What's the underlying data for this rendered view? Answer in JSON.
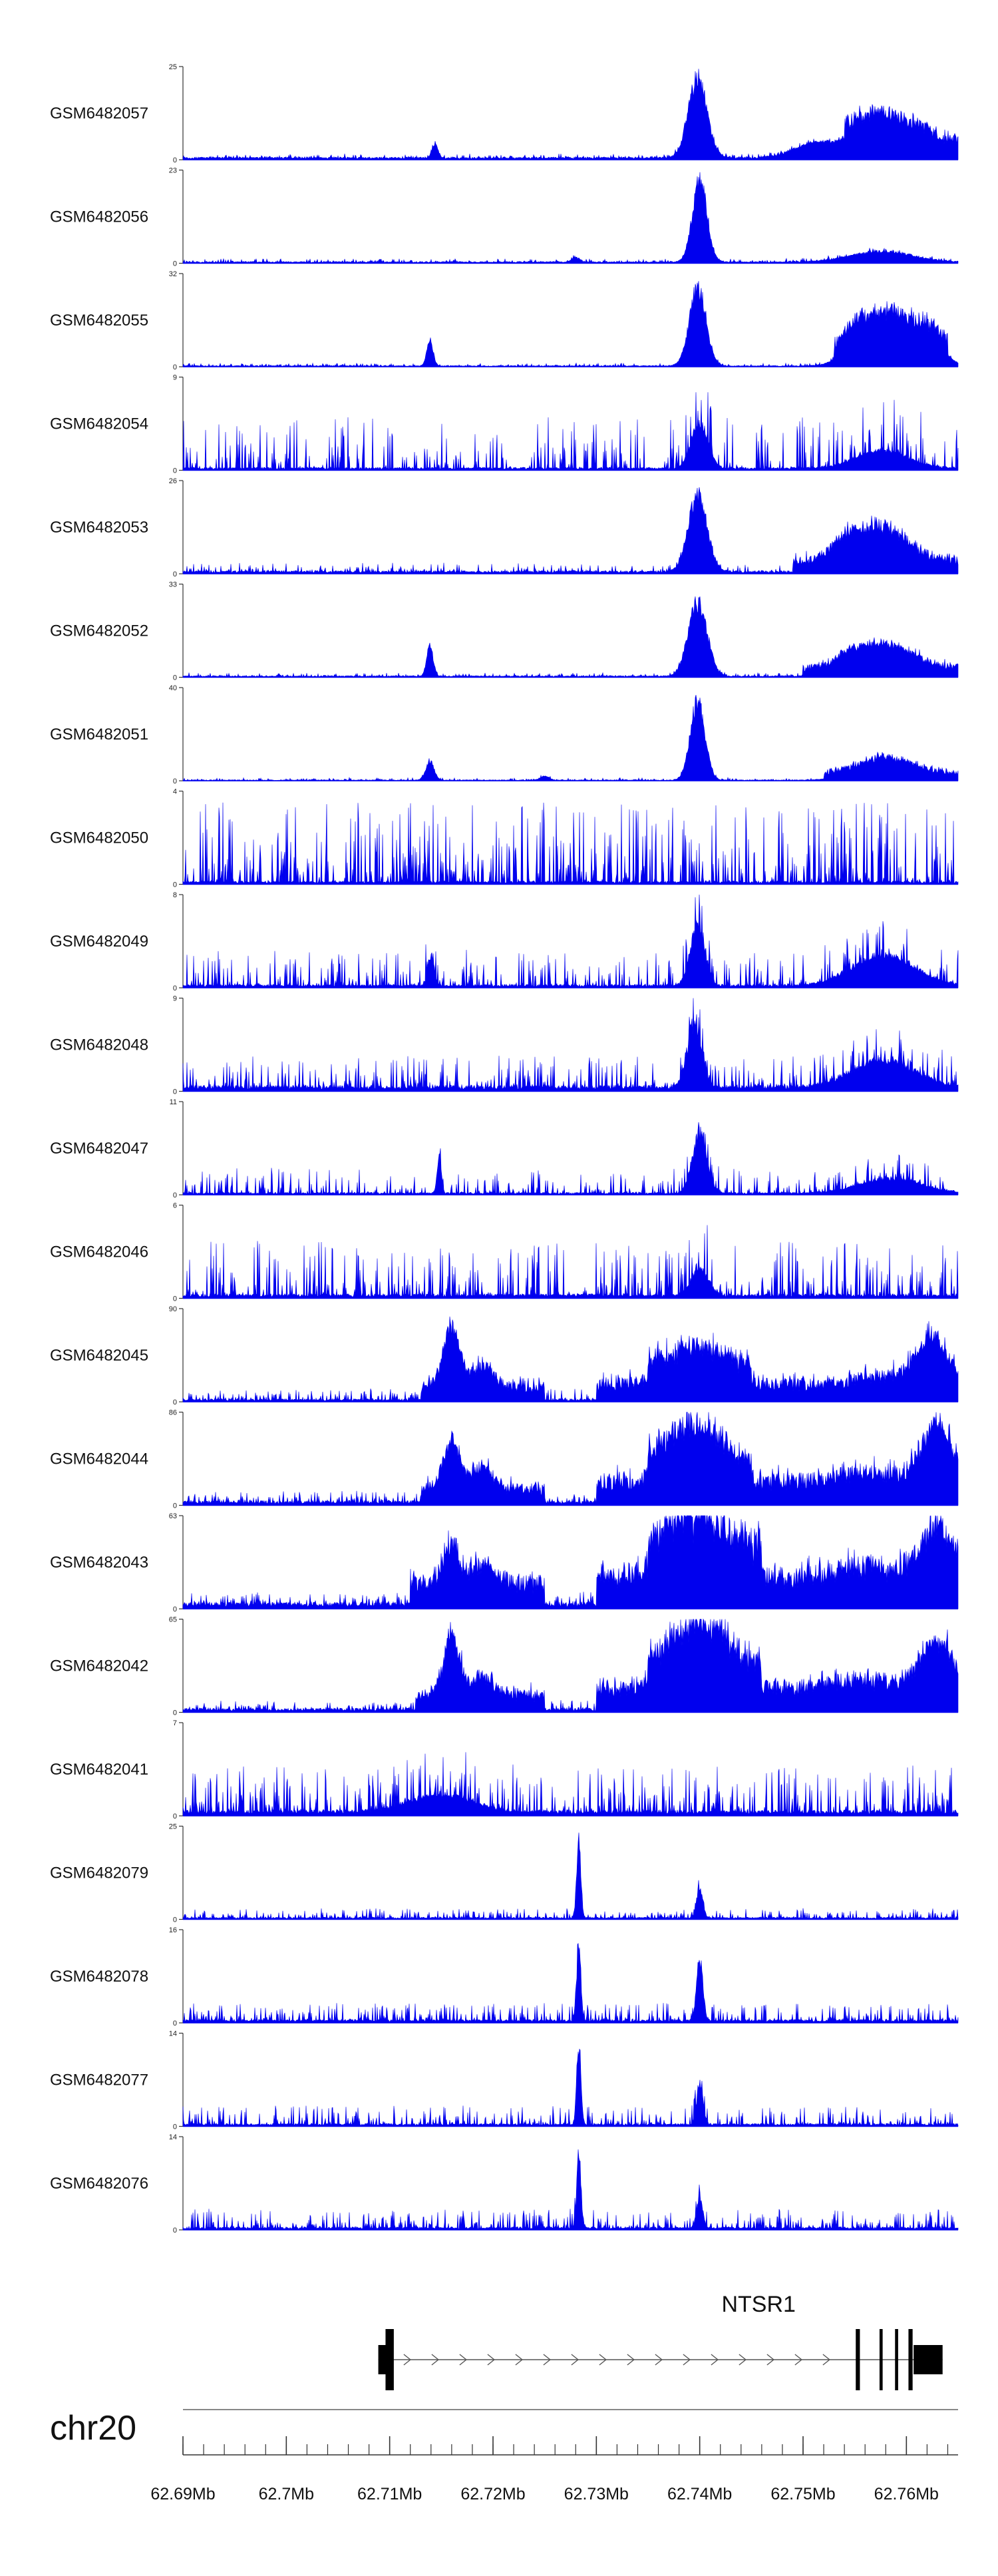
{
  "chart_data": {
    "type": "area",
    "chromosome": "chr20",
    "xlim": [
      62.69,
      62.765
    ],
    "x_unit": "Mb",
    "tracks": [
      {
        "name": "GSM6482057",
        "ymax": "25",
        "ymin": "0",
        "max": 25,
        "base": 0.5,
        "noise": 0.9,
        "noise_p": 0.4,
        "peaks": [
          [
            62.7398,
            0.0009,
            24
          ],
          [
            62.7144,
            0.0003,
            4
          ],
          [
            62.7575,
            0.0036,
            9
          ],
          [
            62.7505,
            0.0018,
            3
          ]
        ],
        "plateaus": [
          [
            62.754,
            62.765,
            4
          ]
        ]
      },
      {
        "name": "GSM6482056",
        "ymax": "23",
        "ymin": "0",
        "max": 23,
        "base": 0.3,
        "noise": 0.8,
        "noise_p": 0.3,
        "peaks": [
          [
            62.74,
            0.0007,
            23
          ],
          [
            62.7575,
            0.003,
            3
          ],
          [
            62.728,
            0.0004,
            1.2
          ]
        ],
        "plateaus": []
      },
      {
        "name": "GSM6482055",
        "ymax": "32",
        "ymin": "0",
        "max": 32,
        "base": 0.3,
        "noise": 0.9,
        "noise_p": 0.3,
        "peaks": [
          [
            62.7398,
            0.0008,
            30
          ],
          [
            62.7139,
            0.0003,
            10
          ],
          [
            62.7585,
            0.0025,
            16
          ],
          [
            62.755,
            0.0012,
            6
          ],
          [
            62.7625,
            0.0012,
            6
          ]
        ],
        "plateaus": [
          [
            62.753,
            62.764,
            5
          ]
        ]
      },
      {
        "name": "GSM6482054",
        "ymax": "9",
        "ymin": "0",
        "max": 9,
        "base": 0.2,
        "noise": 5,
        "noise_p": 0.28,
        "peaks": [
          [
            62.74,
            0.0008,
            5
          ],
          [
            62.7577,
            0.0025,
            2
          ]
        ],
        "plateaus": []
      },
      {
        "name": "GSM6482053",
        "ymax": "26",
        "ymin": "0",
        "max": 26,
        "base": 0.6,
        "noise": 2.2,
        "noise_p": 0.25,
        "peaks": [
          [
            62.7398,
            0.0009,
            24
          ],
          [
            62.7575,
            0.0025,
            11
          ],
          [
            62.754,
            0.0012,
            5
          ]
        ],
        "plateaus": [
          [
            62.749,
            62.765,
            3
          ]
        ]
      },
      {
        "name": "GSM6482052",
        "ymax": "33",
        "ymin": "0",
        "max": 33,
        "base": 0.4,
        "noise": 1.2,
        "noise_p": 0.25,
        "peaks": [
          [
            62.7398,
            0.0009,
            30
          ],
          [
            62.7139,
            0.0003,
            12
          ],
          [
            62.758,
            0.0026,
            10
          ],
          [
            62.7545,
            0.0012,
            4
          ]
        ],
        "plateaus": [
          [
            62.75,
            62.765,
            3
          ]
        ]
      },
      {
        "name": "GSM6482051",
        "ymax": "40",
        "ymin": "0",
        "max": 40,
        "base": 0.3,
        "noise": 1.0,
        "noise_p": 0.25,
        "peaks": [
          [
            62.7398,
            0.0007,
            38
          ],
          [
            62.7139,
            0.0004,
            9
          ],
          [
            62.758,
            0.0026,
            8
          ],
          [
            62.725,
            0.0004,
            2
          ]
        ],
        "plateaus": [
          [
            62.752,
            62.765,
            3
          ]
        ]
      },
      {
        "name": "GSM6482050",
        "ymax": "4",
        "ymin": "0",
        "max": 4,
        "base": 0.1,
        "noise": 3.4,
        "noise_p": 0.45,
        "peaks": [],
        "plateaus": []
      },
      {
        "name": "GSM6482049",
        "ymax": "8",
        "ymin": "0",
        "max": 8,
        "base": 0.2,
        "noise": 3,
        "noise_p": 0.35,
        "peaks": [
          [
            62.7398,
            0.0007,
            6
          ],
          [
            62.7578,
            0.003,
            3
          ],
          [
            62.714,
            0.0003,
            3
          ]
        ],
        "plateaus": []
      },
      {
        "name": "GSM6482048",
        "ymax": "9",
        "ymin": "0",
        "max": 9,
        "base": 0.4,
        "noise": 3,
        "noise_p": 0.35,
        "peaks": [
          [
            62.7395,
            0.0007,
            7
          ],
          [
            62.7578,
            0.003,
            3
          ]
        ],
        "plateaus": []
      },
      {
        "name": "GSM6482047",
        "ymax": "11",
        "ymin": "0",
        "max": 11,
        "base": 0.2,
        "noise": 3,
        "noise_p": 0.3,
        "peaks": [
          [
            62.74,
            0.0007,
            8
          ],
          [
            62.7148,
            0.0002,
            5
          ],
          [
            62.7585,
            0.003,
            2
          ]
        ],
        "plateaus": []
      },
      {
        "name": "GSM6482046",
        "ymax": "6",
        "ymin": "0",
        "max": 6,
        "base": 0.2,
        "noise": 3.5,
        "noise_p": 0.35,
        "peaks": [
          [
            62.74,
            0.0008,
            2
          ]
        ],
        "plateaus": []
      },
      {
        "name": "GSM6482045",
        "ymax": "90",
        "ymin": "0",
        "max": 90,
        "base": 2,
        "noise": 10,
        "noise_p": 0.35,
        "peaks": [
          [
            62.716,
            0.0008,
            68
          ],
          [
            62.719,
            0.001,
            25
          ],
          [
            62.7395,
            0.003,
            22
          ],
          [
            62.7625,
            0.0015,
            50
          ],
          [
            62.758,
            0.003,
            10
          ]
        ],
        "plateaus": [
          [
            62.713,
            62.725,
            12
          ],
          [
            62.73,
            62.765,
            14
          ],
          [
            62.735,
            62.745,
            18
          ]
        ]
      },
      {
        "name": "GSM6482044",
        "ymax": "86",
        "ymin": "0",
        "max": 86,
        "base": 3,
        "noise": 10,
        "noise_p": 0.35,
        "peaks": [
          [
            62.716,
            0.0008,
            50
          ],
          [
            62.719,
            0.001,
            22
          ],
          [
            62.7395,
            0.0025,
            40
          ],
          [
            62.763,
            0.0015,
            60
          ],
          [
            62.756,
            0.003,
            10
          ]
        ],
        "plateaus": [
          [
            62.713,
            62.725,
            12
          ],
          [
            62.73,
            62.765,
            18
          ],
          [
            62.735,
            62.745,
            20
          ]
        ]
      },
      {
        "name": "GSM6482043",
        "ymax": "63",
        "ymin": "0",
        "max": 63,
        "base": 3,
        "noise": 8,
        "noise_p": 0.4,
        "peaks": [
          [
            62.716,
            0.0008,
            30
          ],
          [
            62.719,
            0.001,
            15
          ],
          [
            62.7395,
            0.0028,
            25
          ],
          [
            62.763,
            0.0016,
            40
          ],
          [
            62.756,
            0.003,
            8
          ]
        ],
        "plateaus": [
          [
            62.712,
            62.725,
            14
          ],
          [
            62.73,
            62.765,
            18
          ],
          [
            62.735,
            62.746,
            20
          ]
        ]
      },
      {
        "name": "GSM6482042",
        "ymax": "65",
        "ymin": "0",
        "max": 65,
        "base": 2,
        "noise": 6,
        "noise_p": 0.35,
        "peaks": [
          [
            62.716,
            0.0008,
            45
          ],
          [
            62.719,
            0.001,
            15
          ],
          [
            62.7398,
            0.0028,
            35
          ],
          [
            62.763,
            0.0016,
            40
          ],
          [
            62.7555,
            0.003,
            8
          ]
        ],
        "plateaus": [
          [
            62.7125,
            62.725,
            10
          ],
          [
            62.73,
            62.765,
            14
          ],
          [
            62.735,
            62.746,
            16
          ]
        ]
      },
      {
        "name": "GSM6482041",
        "ymax": "7",
        "ymin": "0",
        "max": 7,
        "base": 0.3,
        "noise": 3.5,
        "noise_p": 0.4,
        "peaks": [
          [
            62.715,
            0.003,
            1.5
          ]
        ],
        "plateaus": []
      },
      {
        "name": "GSM6482079",
        "ymax": "25",
        "ymin": "0",
        "max": 25,
        "base": 0.4,
        "noise": 2.5,
        "noise_p": 0.35,
        "peaks": [
          [
            62.7283,
            0.0002,
            23
          ],
          [
            62.74,
            0.0003,
            9
          ]
        ],
        "plateaus": []
      },
      {
        "name": "GSM6482078",
        "ymax": "16",
        "ymin": "0",
        "max": 16,
        "base": 0.4,
        "noise": 3,
        "noise_p": 0.35,
        "peaks": [
          [
            62.7283,
            0.0002,
            15
          ],
          [
            62.74,
            0.0003,
            12
          ]
        ],
        "plateaus": []
      },
      {
        "name": "GSM6482077",
        "ymax": "14",
        "ymin": "0",
        "max": 14,
        "base": 0.3,
        "noise": 2.8,
        "noise_p": 0.35,
        "peaks": [
          [
            62.7283,
            0.0002,
            13
          ],
          [
            62.74,
            0.0003,
            7
          ]
        ],
        "plateaus": []
      },
      {
        "name": "GSM6482076",
        "ymax": "14",
        "ymin": "0",
        "max": 14,
        "base": 0.3,
        "noise": 2.8,
        "noise_p": 0.4,
        "peaks": [
          [
            62.7283,
            0.0002,
            13
          ],
          [
            62.74,
            0.0003,
            5
          ]
        ],
        "plateaus": []
      }
    ],
    "gene": {
      "name": "NTSR1",
      "strand": "+",
      "start": 62.7089,
      "end": 62.7635,
      "exons": [
        {
          "start": 62.7089,
          "end": 62.7101,
          "utr": true
        },
        {
          "start": 62.7096,
          "end": 62.7104,
          "utr": false
        },
        {
          "start": 62.7551,
          "end": 62.7555,
          "utr": false
        },
        {
          "start": 62.7574,
          "end": 62.7577,
          "utr": false
        },
        {
          "start": 62.7589,
          "end": 62.7592,
          "utr": false
        },
        {
          "start": 62.7602,
          "end": 62.7606,
          "utr": false
        },
        {
          "start": 62.7607,
          "end": 62.7635,
          "utr": true
        }
      ]
    },
    "x_ticks": [
      62.69,
      62.7,
      62.71,
      62.72,
      62.73,
      62.74,
      62.75,
      62.76
    ],
    "x_tick_labels": [
      "62.69Mb",
      "62.7Mb",
      "62.71Mb",
      "62.72Mb",
      "62.73Mb",
      "62.74Mb",
      "62.75Mb",
      "62.76Mb"
    ],
    "minor_tick_step": 0.002,
    "colors": {
      "signal": "#0000ee",
      "axis": "#333333",
      "gene": "#000000",
      "chrom_line": "#888888"
    }
  }
}
